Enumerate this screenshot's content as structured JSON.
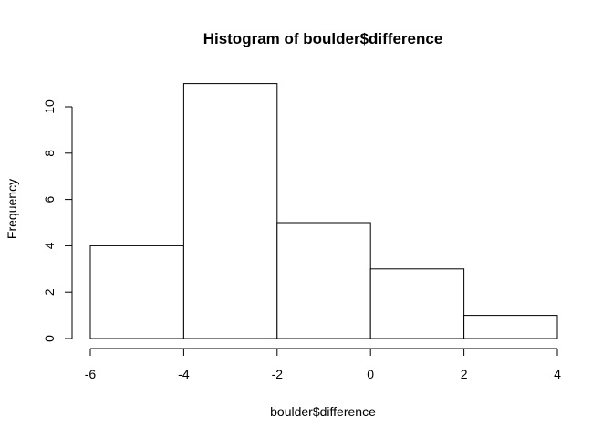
{
  "chart_data": {
    "type": "bar",
    "subtype": "histogram",
    "title": "Histogram of boulder$difference",
    "xlabel": "boulder$difference",
    "ylabel": "Frequency",
    "bins": [
      {
        "start": -6,
        "end": -4,
        "count": 4
      },
      {
        "start": -4,
        "end": -2,
        "count": 11
      },
      {
        "start": -2,
        "end": 0,
        "count": 5
      },
      {
        "start": 0,
        "end": 2,
        "count": 3
      },
      {
        "start": 2,
        "end": 4,
        "count": 1
      }
    ],
    "xlim": [
      -6,
      4
    ],
    "ylim": [
      0,
      11
    ],
    "x_ticks": [
      "-6",
      "-4",
      "-2",
      "0",
      "2",
      "4"
    ],
    "y_ticks": [
      "0",
      "2",
      "4",
      "6",
      "8",
      "10"
    ],
    "grid": false,
    "bar_fill": "#ffffff",
    "bar_stroke": "#000000"
  }
}
